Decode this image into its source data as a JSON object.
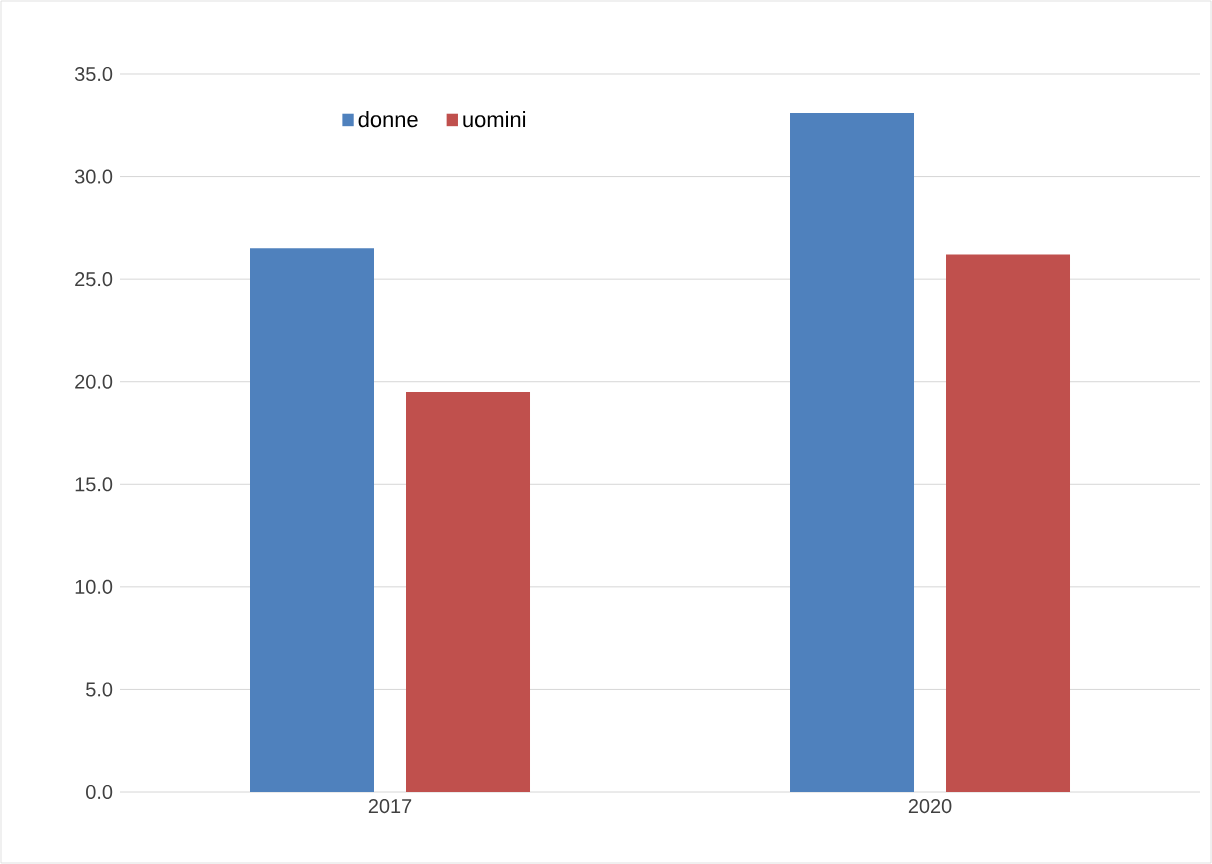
{
  "chart_data": {
    "type": "bar",
    "categories": [
      "2017",
      "2020"
    ],
    "series": [
      {
        "name": "donne",
        "color": "#4f81bd",
        "values": [
          26.5,
          33.1
        ]
      },
      {
        "name": "uomini",
        "color": "#c0504d",
        "values": [
          19.5,
          26.2
        ]
      }
    ],
    "ylim": [
      0,
      35
    ],
    "yticks": [
      {
        "value": 0,
        "label": "0.0"
      },
      {
        "value": 5,
        "label": "5.0"
      },
      {
        "value": 10,
        "label": "10.0"
      },
      {
        "value": 15,
        "label": "15.0"
      },
      {
        "value": 20,
        "label": "20.0"
      },
      {
        "value": 25,
        "label": "25.0"
      },
      {
        "value": 30,
        "label": "30.0"
      },
      {
        "value": 35,
        "label": "35.0"
      }
    ],
    "grid": "y",
    "legend": "top left"
  }
}
